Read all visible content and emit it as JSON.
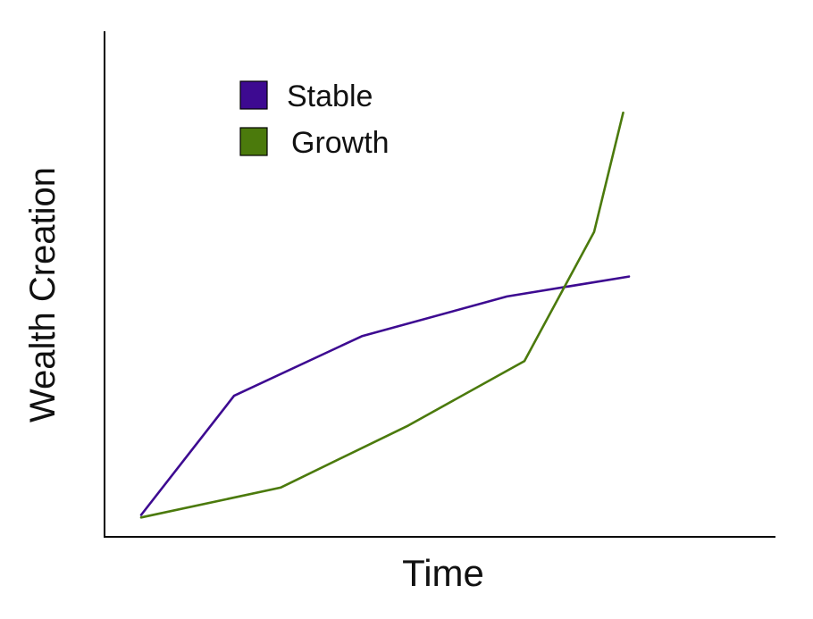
{
  "chart_data": {
    "type": "line",
    "title": "",
    "xlabel": "Time",
    "ylabel": "Wealth Creation",
    "xlim": [
      0,
      10
    ],
    "ylim": [
      0,
      10
    ],
    "grid": false,
    "legend_position": "top-left",
    "ticks_shown": false,
    "series": [
      {
        "name": "Stable",
        "color": "#3d0a91",
        "x": [
          0,
          1.6,
          3.8,
          6.3,
          8.4
        ],
        "y": [
          0.8,
          3.2,
          4.4,
          5.2,
          5.6
        ]
      },
      {
        "name": "Growth",
        "color": "#4b7a0c",
        "x": [
          0,
          2.4,
          4.6,
          6.6,
          7.8,
          8.3
        ],
        "y": [
          0.75,
          1.35,
          2.6,
          3.9,
          6.5,
          8.9
        ]
      }
    ]
  }
}
